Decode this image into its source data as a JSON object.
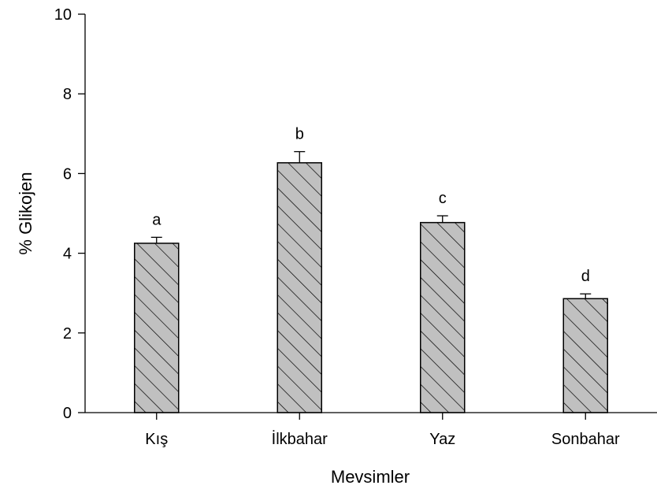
{
  "chart_data": {
    "type": "bar",
    "title": "",
    "xlabel": "Mevsimler",
    "ylabel": "% Glikojen",
    "ylim": [
      0,
      10
    ],
    "yticks": [
      "0",
      "2",
      "4",
      "6",
      "8",
      "10"
    ],
    "categories": [
      "Kış",
      "İlkbahar",
      "Yaz",
      "Sonbahar"
    ],
    "values": [
      4.25,
      6.27,
      4.77,
      2.86
    ],
    "errors": [
      0.15,
      0.28,
      0.17,
      0.12
    ],
    "significance_labels": [
      "a",
      "b",
      "c",
      "d"
    ],
    "bar_fill": "#c0c0c0",
    "bar_pattern": "diagonal-hatch",
    "grid": false,
    "legend": "none"
  }
}
